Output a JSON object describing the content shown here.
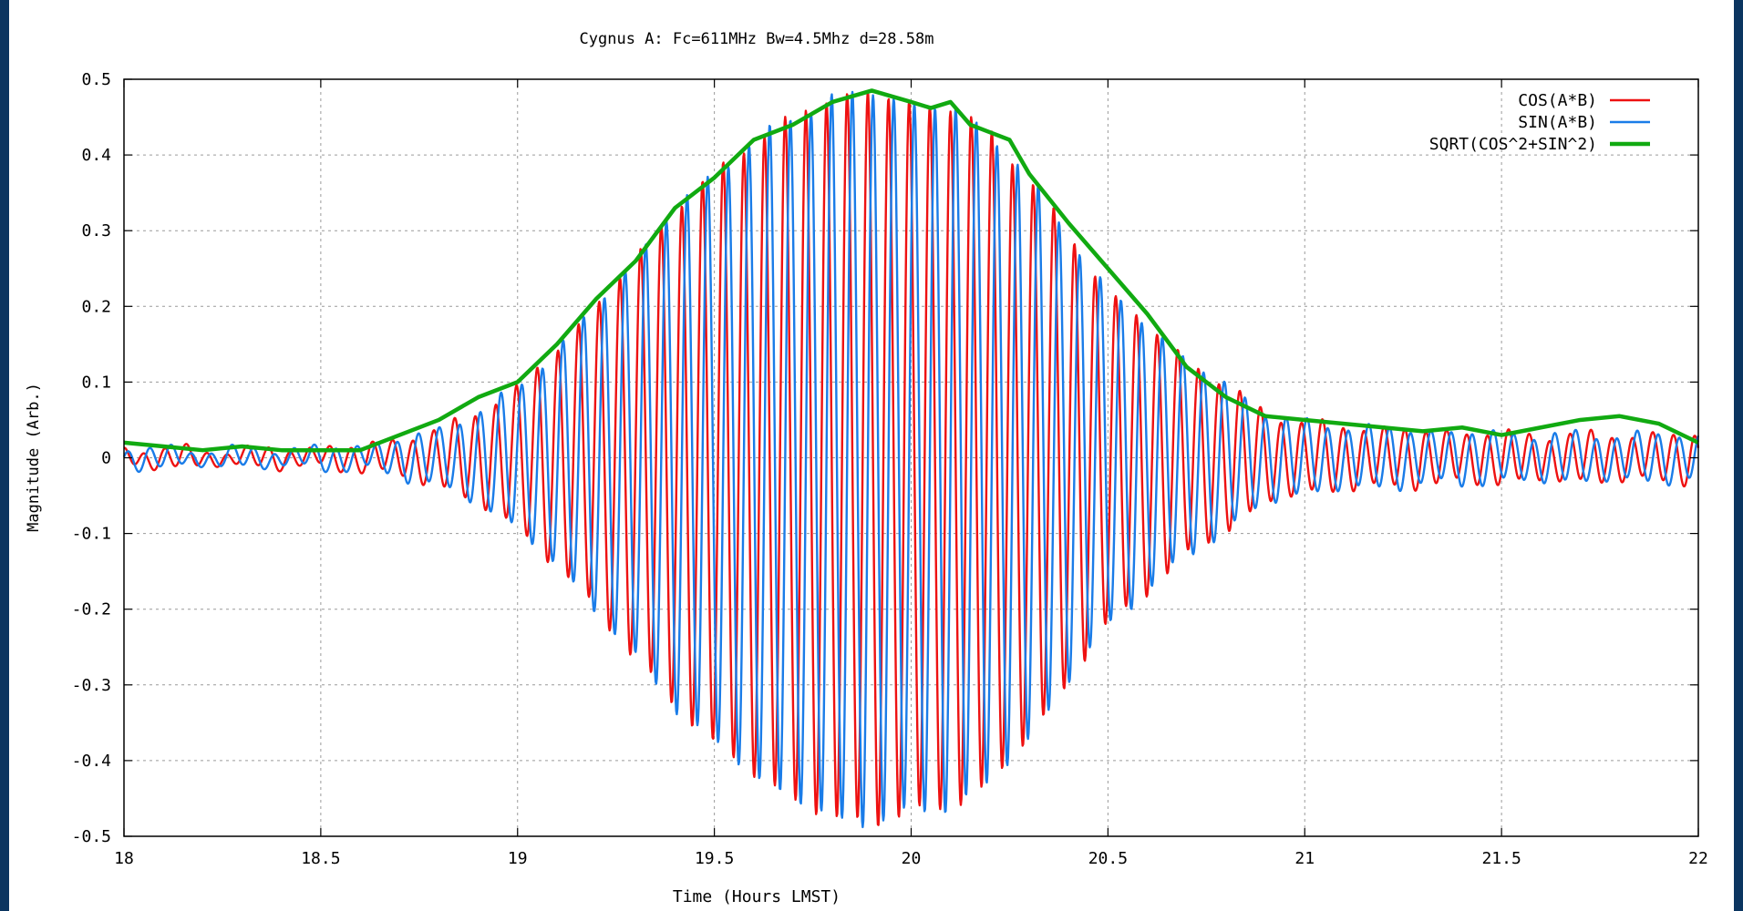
{
  "chart_data": {
    "type": "line",
    "title": "Cygnus A: Fc=611MHz Bw=4.5Mhz d=28.58m",
    "xlabel": "Time (Hours LMST)",
    "ylabel": "Magnitude (Arb.)",
    "xlim": [
      18,
      22
    ],
    "ylim": [
      -0.5,
      0.5
    ],
    "xticks": [
      "18",
      "18.5",
      "19",
      "19.5",
      "20",
      "20.5",
      "21",
      "21.5",
      "22"
    ],
    "yticks": [
      "0.5",
      "0.4",
      "0.3",
      "0.2",
      "0.1",
      "0",
      "-0.1",
      "-0.2",
      "-0.3",
      "-0.4",
      "-0.5"
    ],
    "grid": true,
    "legend_position": "top-right",
    "fringe_period_hours": 0.0525,
    "series": [
      {
        "name": "COS(A*B)",
        "color": "#ee1111",
        "kind": "cos",
        "envelope": [
          [
            18.0,
            0.012
          ],
          [
            18.3,
            0.01
          ],
          [
            18.6,
            0.015
          ],
          [
            18.8,
            0.035
          ],
          [
            19.0,
            0.09
          ],
          [
            19.2,
            0.2
          ],
          [
            19.4,
            0.33
          ],
          [
            19.6,
            0.42
          ],
          [
            19.8,
            0.478
          ],
          [
            19.9,
            0.482
          ],
          [
            20.0,
            0.468
          ],
          [
            20.1,
            0.462
          ],
          [
            20.2,
            0.43
          ],
          [
            20.3,
            0.37
          ],
          [
            20.5,
            0.22
          ],
          [
            20.7,
            0.13
          ],
          [
            20.9,
            0.06
          ],
          [
            21.0,
            0.045
          ],
          [
            21.3,
            0.035
          ],
          [
            21.6,
            0.03
          ],
          [
            22.0,
            0.03
          ]
        ]
      },
      {
        "name": "SIN(A*B)",
        "color": "#1a7ce8",
        "kind": "sin",
        "envelope": [
          [
            18.0,
            0.012
          ],
          [
            18.3,
            0.01
          ],
          [
            18.6,
            0.015
          ],
          [
            18.8,
            0.035
          ],
          [
            19.0,
            0.09
          ],
          [
            19.2,
            0.2
          ],
          [
            19.4,
            0.33
          ],
          [
            19.6,
            0.42
          ],
          [
            19.8,
            0.478
          ],
          [
            19.9,
            0.482
          ],
          [
            20.0,
            0.468
          ],
          [
            20.1,
            0.462
          ],
          [
            20.2,
            0.43
          ],
          [
            20.3,
            0.37
          ],
          [
            20.5,
            0.22
          ],
          [
            20.7,
            0.13
          ],
          [
            20.9,
            0.06
          ],
          [
            21.0,
            0.045
          ],
          [
            21.3,
            0.035
          ],
          [
            21.6,
            0.03
          ],
          [
            22.0,
            0.03
          ]
        ]
      },
      {
        "name": "SQRT(COS^2+SIN^2)",
        "color": "#11aa11",
        "kind": "magnitude",
        "x": [
          18.0,
          18.1,
          18.2,
          18.3,
          18.4,
          18.5,
          18.6,
          18.7,
          18.8,
          18.9,
          19.0,
          19.1,
          19.2,
          19.3,
          19.4,
          19.5,
          19.6,
          19.7,
          19.8,
          19.9,
          20.0,
          20.05,
          20.1,
          20.15,
          20.2,
          20.25,
          20.3,
          20.4,
          20.5,
          20.6,
          20.7,
          20.8,
          20.9,
          21.0,
          21.1,
          21.2,
          21.3,
          21.4,
          21.5,
          21.6,
          21.7,
          21.8,
          21.9,
          22.0
        ],
        "y": [
          0.02,
          0.015,
          0.01,
          0.015,
          0.01,
          0.01,
          0.01,
          0.03,
          0.05,
          0.08,
          0.1,
          0.15,
          0.21,
          0.26,
          0.33,
          0.37,
          0.42,
          0.44,
          0.47,
          0.485,
          0.47,
          0.462,
          0.47,
          0.44,
          0.43,
          0.42,
          0.375,
          0.31,
          0.25,
          0.19,
          0.12,
          0.08,
          0.055,
          0.05,
          0.045,
          0.04,
          0.035,
          0.04,
          0.03,
          0.04,
          0.05,
          0.055,
          0.045,
          0.02
        ]
      }
    ]
  }
}
